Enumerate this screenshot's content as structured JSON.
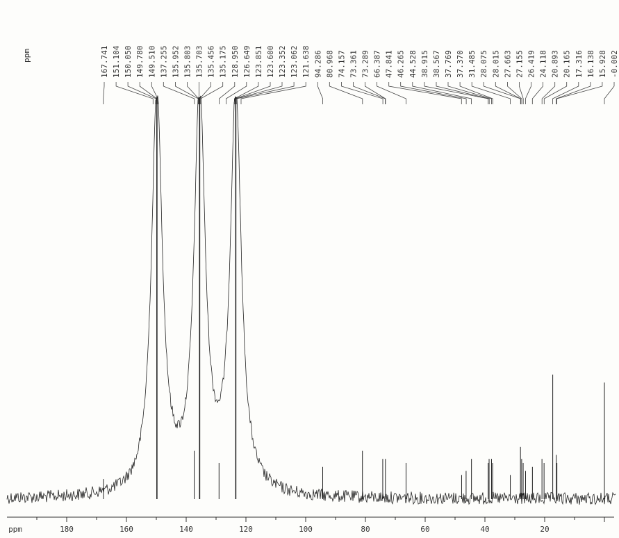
{
  "chart_data": {
    "type": "line",
    "xlabel": "ppm",
    "ylabel": "",
    "label_unit": "ppm",
    "xlim": [
      190,
      -1
    ],
    "x_ticks": [
      180,
      160,
      140,
      120,
      100,
      80,
      60,
      40,
      20
    ],
    "reversed_x": true,
    "grid": false,
    "peak_labels": [
      "167.741",
      "151.104",
      "150.050",
      "149.780",
      "149.510",
      "137.255",
      "135.952",
      "135.803",
      "135.703",
      "135.456",
      "135.175",
      "128.950",
      "126.649",
      "123.851",
      "123.600",
      "123.352",
      "123.062",
      "121.638",
      "94.286",
      "80.968",
      "74.157",
      "73.361",
      "73.289",
      "66.387",
      "47.841",
      "46.265",
      "44.528",
      "38.915",
      "38.567",
      "37.769",
      "37.370",
      "31.485",
      "28.075",
      "28.015",
      "27.663",
      "27.155",
      "26.419",
      "24.118",
      "20.893",
      "20.165",
      "17.316",
      "16.138",
      "15.928",
      "-0.002"
    ],
    "peaks": [
      {
        "ppm": 167.7,
        "height": 0.05
      },
      {
        "ppm": 149.8,
        "height": 1.0
      },
      {
        "ppm": 137.3,
        "height": 0.12
      },
      {
        "ppm": 135.5,
        "height": 1.0
      },
      {
        "ppm": 129.0,
        "height": 0.09
      },
      {
        "ppm": 123.4,
        "height": 1.0
      },
      {
        "ppm": 94.3,
        "height": 0.08
      },
      {
        "ppm": 81.0,
        "height": 0.12
      },
      {
        "ppm": 74.2,
        "height": 0.1
      },
      {
        "ppm": 73.3,
        "height": 0.1
      },
      {
        "ppm": 66.4,
        "height": 0.09
      },
      {
        "ppm": 47.8,
        "height": 0.06
      },
      {
        "ppm": 46.3,
        "height": 0.07
      },
      {
        "ppm": 44.5,
        "height": 0.1
      },
      {
        "ppm": 38.9,
        "height": 0.09
      },
      {
        "ppm": 38.6,
        "height": 0.1
      },
      {
        "ppm": 37.8,
        "height": 0.1
      },
      {
        "ppm": 37.4,
        "height": 0.09
      },
      {
        "ppm": 31.5,
        "height": 0.06
      },
      {
        "ppm": 28.1,
        "height": 0.13
      },
      {
        "ppm": 27.7,
        "height": 0.1
      },
      {
        "ppm": 27.2,
        "height": 0.09
      },
      {
        "ppm": 26.4,
        "height": 0.07
      },
      {
        "ppm": 24.1,
        "height": 0.08
      },
      {
        "ppm": 20.9,
        "height": 0.1
      },
      {
        "ppm": 20.2,
        "height": 0.09
      },
      {
        "ppm": 17.3,
        "height": 0.31
      },
      {
        "ppm": 16.1,
        "height": 0.11
      },
      {
        "ppm": 15.9,
        "height": 0.09
      },
      {
        "ppm": 0.0,
        "height": 0.29
      }
    ]
  }
}
